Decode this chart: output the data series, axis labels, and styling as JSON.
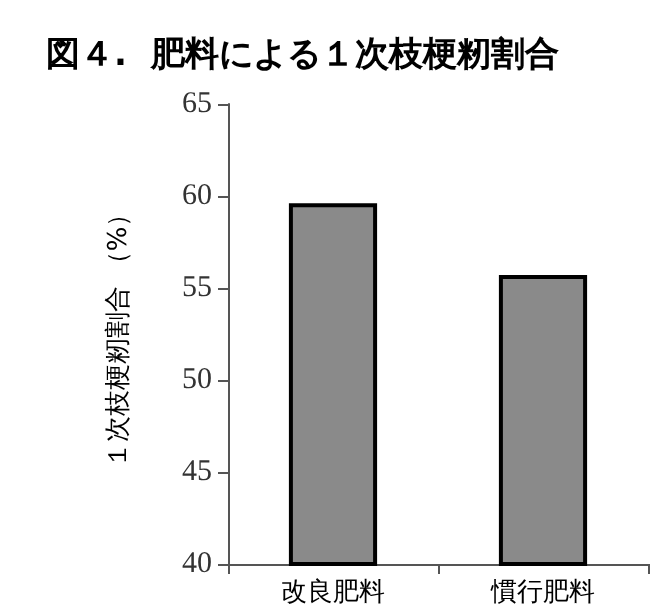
{
  "chart_data": {
    "type": "bar",
    "title": "図４.  肥料による１次枝梗籾割合",
    "ylabel": "１次枝梗籾割合 （%）",
    "categories": [
      "改良肥料",
      "慣行肥料"
    ],
    "values": [
      59.6,
      55.7
    ],
    "color": "#8a8a8a",
    "ylim": [
      40,
      65
    ],
    "yticks": [
      40,
      45,
      50,
      55,
      60,
      65
    ],
    "grid": false
  }
}
